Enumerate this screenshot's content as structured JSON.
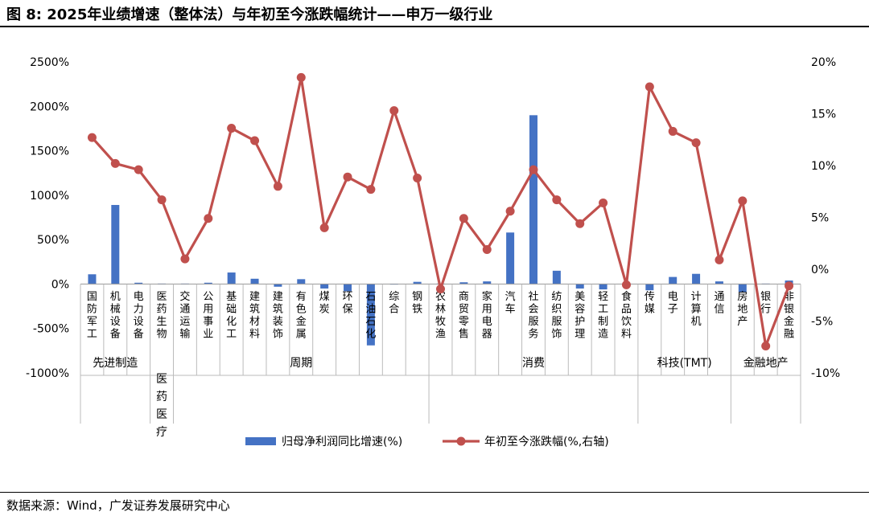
{
  "title": "图  8:  2025年业绩增速（整体法）与年初至今涨跌幅统计——申万一级行业",
  "source": "数据来源：Wind，广发证券发展研究中心",
  "chart_data": {
    "type": "bar+line",
    "categories": [
      "国防军工",
      "机械设备",
      "电力设备",
      "医药生物",
      "交通运输",
      "公用事业",
      "基础化工",
      "建筑材料",
      "建筑装饰",
      "有色金属",
      "煤炭",
      "环保",
      "石油石化",
      "综合",
      "钢铁",
      "农林牧渔",
      "商贸零售",
      "家用电器",
      "汽车",
      "社会服务",
      "纺织服饰",
      "美容护理",
      "轻工制造",
      "食品饮料",
      "传媒",
      "电子",
      "计算机",
      "通信",
      "房地产",
      "银行",
      "非银金融"
    ],
    "groups": [
      {
        "label": "先进制造",
        "count": 3
      },
      {
        "label": "医药医疗",
        "count": 1
      },
      {
        "label": "周期",
        "count": 11
      },
      {
        "label": "消费",
        "count": 9
      },
      {
        "label": "科技(TMT)",
        "count": 4
      },
      {
        "label": "金融地产",
        "count": 3
      }
    ],
    "series": [
      {
        "name": "归母净利润同比增速(%)",
        "type": "bar",
        "axis": "left",
        "color": "#4472C4",
        "values": [
          110,
          890,
          15,
          5,
          5,
          15,
          130,
          60,
          -30,
          55,
          -50,
          -80,
          -690,
          3,
          25,
          5,
          20,
          30,
          580,
          1900,
          150,
          -50,
          -60,
          5,
          -70,
          80,
          115,
          30,
          -90,
          5,
          40
        ]
      },
      {
        "name": "年初至今涨跌幅(%,右轴)",
        "type": "line",
        "axis": "right",
        "color": "#C0504D",
        "values": [
          12.7,
          10.2,
          9.6,
          6.7,
          1.0,
          4.9,
          13.6,
          12.4,
          8.0,
          18.5,
          4.0,
          8.9,
          7.7,
          15.3,
          8.8,
          -1.9,
          4.9,
          1.9,
          5.6,
          9.6,
          6.7,
          4.4,
          6.4,
          -1.5,
          17.6,
          13.3,
          12.2,
          0.9,
          6.6,
          -7.4,
          -1.6
        ]
      }
    ],
    "left_axis": {
      "min": -1000,
      "max": 2500,
      "step": 500,
      "tick_labels": [
        "-1000%",
        "-500%",
        "0%",
        "500%",
        "1000%",
        "1500%",
        "2000%",
        "2500%"
      ]
    },
    "right_axis": {
      "min": -10,
      "max": 20,
      "step": 5,
      "tick_labels": [
        "-10%",
        "-5%",
        "0%",
        "5%",
        "10%",
        "15%",
        "20%"
      ]
    },
    "legend_position": "bottom"
  }
}
